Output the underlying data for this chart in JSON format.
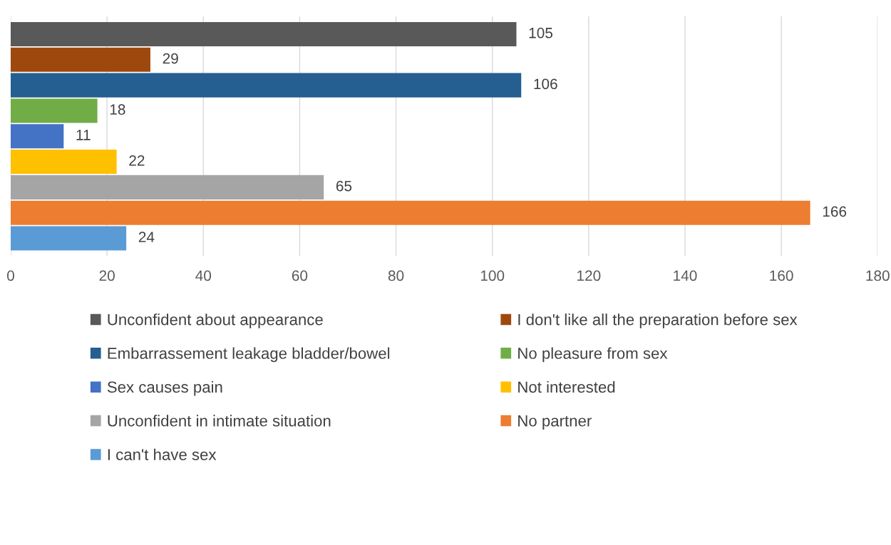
{
  "chart_data": {
    "type": "bar",
    "orientation": "horizontal",
    "categories": [
      null
    ],
    "series": [
      {
        "name": "Unconfident about appearance",
        "color": "#595959",
        "values": [
          105
        ]
      },
      {
        "name": "I don't like all the preparation before sex",
        "color": "#9e480e",
        "values": [
          29
        ]
      },
      {
        "name": "Embarrassement leakage bladder/bowel",
        "color": "#255e91",
        "values": [
          106
        ]
      },
      {
        "name": "No pleasure from sex",
        "color": "#70ad47",
        "values": [
          18
        ]
      },
      {
        "name": "Sex causes pain",
        "color": "#4472c4",
        "values": [
          11
        ]
      },
      {
        "name": "Not interested",
        "color": "#ffc000",
        "values": [
          22
        ]
      },
      {
        "name": "Unconfident in intimate situation",
        "color": "#a5a5a5",
        "values": [
          65
        ]
      },
      {
        "name": "No partner",
        "color": "#ed7d31",
        "values": [
          166
        ]
      },
      {
        "name": "I can't have sex",
        "color": "#5b9bd5",
        "values": [
          24
        ]
      }
    ],
    "xlim": [
      0,
      180
    ],
    "xticks": [
      0,
      20,
      40,
      60,
      80,
      100,
      120,
      140,
      160,
      180
    ],
    "grid": "x",
    "legend": "bottom",
    "data_labels": true,
    "tick_labels": "x"
  }
}
